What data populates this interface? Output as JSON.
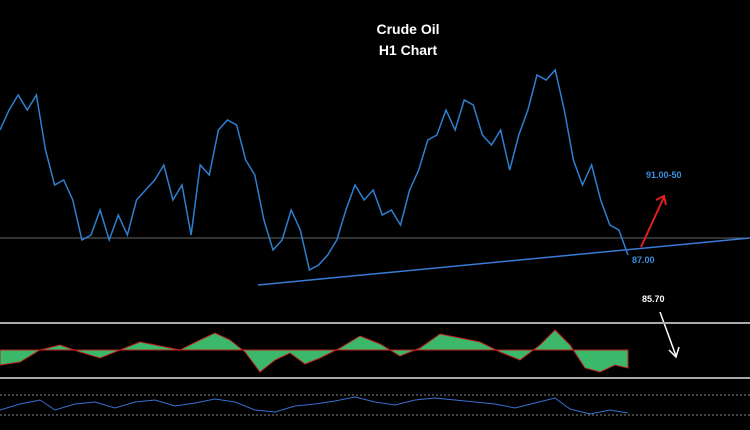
{
  "chart_data": {
    "type": "line",
    "title": "Crude Oil",
    "subtitle": "H1 Chart",
    "ylim": [
      84,
      98
    ],
    "series": [
      {
        "color": "#2f7fd0",
        "values": [
          93.25,
          94.25,
          95,
          94.25,
          95,
          92.25,
          90.5,
          90.75,
          89.75,
          87.75,
          88,
          89.25,
          87.75,
          89,
          88,
          89.75,
          90.25,
          90.75,
          91.5,
          89.75,
          90.5,
          88,
          91.5,
          91,
          93.25,
          93.75,
          93.5,
          91.75,
          91,
          88.75,
          87.25,
          87.75,
          89.25,
          88.25,
          86.25,
          86.5,
          87,
          87.75,
          89.25,
          90.5,
          89.75,
          90.25,
          89,
          89.25,
          88.5,
          90.25,
          91.25,
          92.75,
          93,
          94.25,
          93.25,
          94.75,
          94.5,
          93,
          92.5,
          93.25,
          91.25,
          93,
          94.25,
          96,
          95.75,
          96.25,
          94.25,
          91.75,
          90.5,
          91.5,
          89.75,
          88.5,
          88.25,
          87
        ]
      }
    ],
    "annotations": [
      {
        "text": "91.00-50"
      },
      {
        "text": "87.00"
      },
      {
        "text": "85.70"
      }
    ]
  }
}
